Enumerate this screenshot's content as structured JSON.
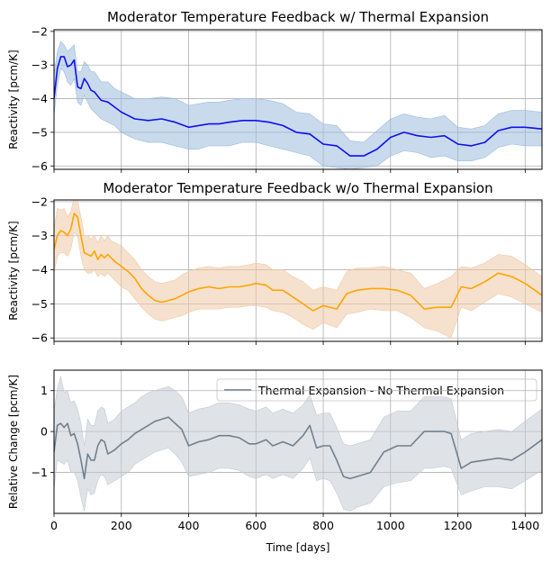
{
  "chart_data": [
    {
      "type": "line",
      "title": "Moderator Temperature Feedback w/ Thermal Expansion",
      "xlabel": "",
      "ylabel": "Reactivity [pcm/K]",
      "xlim": [
        0,
        1450
      ],
      "ylim": [
        -6.1,
        -1.95
      ],
      "yticks": [
        -2,
        -3,
        -4,
        -5,
        -6
      ],
      "ytick_labels": [
        "−2",
        "−3",
        "−4",
        "−5",
        "−6"
      ],
      "xticks": [
        0,
        200,
        400,
        600,
        800,
        1000,
        1200,
        1400
      ],
      "xtick_labels": [],
      "grid": true,
      "colors": {
        "line": "#1010f0",
        "band": "#9dbcdc"
      },
      "series": [
        {
          "x": [
            0,
            10,
            20,
            30,
            40,
            50,
            60,
            70,
            80,
            90,
            100,
            110,
            120,
            140,
            160,
            180,
            200,
            220,
            240,
            280,
            320,
            360,
            400,
            430,
            460,
            490,
            520,
            560,
            600,
            640,
            680,
            720,
            760,
            800,
            840,
            880,
            920,
            960,
            1000,
            1040,
            1080,
            1120,
            1160,
            1200,
            1240,
            1280,
            1320,
            1360,
            1400,
            1450
          ],
          "y": [
            -4.0,
            -3.1,
            -2.75,
            -2.75,
            -3.05,
            -3.0,
            -2.85,
            -3.65,
            -3.7,
            -3.4,
            -3.55,
            -3.75,
            -3.8,
            -4.05,
            -4.1,
            -4.25,
            -4.4,
            -4.5,
            -4.6,
            -4.65,
            -4.6,
            -4.7,
            -4.85,
            -4.8,
            -4.75,
            -4.75,
            -4.7,
            -4.65,
            -4.65,
            -4.7,
            -4.8,
            -5.0,
            -5.05,
            -5.35,
            -5.4,
            -5.7,
            -5.7,
            -5.5,
            -5.15,
            -5.0,
            -5.1,
            -5.15,
            -5.1,
            -5.35,
            -5.4,
            -5.3,
            -4.95,
            -4.85,
            -4.85,
            -4.9
          ],
          "lower": [
            -4.5,
            -3.6,
            -3.1,
            -3.2,
            -3.5,
            -3.6,
            -3.4,
            -4.1,
            -4.2,
            -3.9,
            -4.1,
            -4.3,
            -4.4,
            -4.6,
            -4.7,
            -4.8,
            -5.0,
            -5.1,
            -5.2,
            -5.3,
            -5.3,
            -5.4,
            -5.5,
            -5.5,
            -5.4,
            -5.4,
            -5.4,
            -5.3,
            -5.3,
            -5.4,
            -5.5,
            -5.6,
            -5.7,
            -6.0,
            -6.05,
            -6.1,
            -6.05,
            -6.0,
            -5.7,
            -5.55,
            -5.6,
            -5.75,
            -5.7,
            -5.85,
            -5.85,
            -5.75,
            -5.45,
            -5.35,
            -5.4,
            -5.4
          ],
          "upper": [
            -3.3,
            -2.6,
            -2.3,
            -2.4,
            -2.6,
            -2.5,
            -2.4,
            -3.2,
            -3.2,
            -2.9,
            -3.0,
            -3.2,
            -3.2,
            -3.5,
            -3.5,
            -3.7,
            -3.8,
            -3.9,
            -4.0,
            -4.0,
            -3.95,
            -4.0,
            -4.2,
            -4.15,
            -4.1,
            -4.1,
            -4.05,
            -4.0,
            -4.0,
            -4.05,
            -4.15,
            -4.4,
            -4.45,
            -4.75,
            -4.8,
            -5.25,
            -5.3,
            -4.95,
            -4.6,
            -4.45,
            -4.55,
            -4.6,
            -4.5,
            -4.85,
            -4.9,
            -4.8,
            -4.45,
            -4.35,
            -4.35,
            -4.4
          ]
        }
      ]
    },
    {
      "type": "line",
      "title": "Moderator Temperature Feedback w/o Thermal Expansion",
      "xlabel": "",
      "ylabel": "Reactivity [pcm/K]",
      "xlim": [
        0,
        1450
      ],
      "ylim": [
        -6.1,
        -1.95
      ],
      "yticks": [
        -2,
        -3,
        -4,
        -5,
        -6
      ],
      "ytick_labels": [
        "−2",
        "−3",
        "−4",
        "−5",
        "−6"
      ],
      "xticks": [
        0,
        200,
        400,
        600,
        800,
        1000,
        1200,
        1400
      ],
      "xtick_labels": [],
      "grid": true,
      "colors": {
        "line": "#ffa500",
        "band": "#efc9a6"
      },
      "series": [
        {
          "x": [
            0,
            10,
            20,
            30,
            40,
            50,
            60,
            70,
            80,
            90,
            100,
            110,
            120,
            130,
            140,
            150,
            160,
            170,
            180,
            200,
            220,
            240,
            260,
            280,
            300,
            320,
            340,
            360,
            380,
            400,
            430,
            460,
            490,
            520,
            550,
            580,
            600,
            630,
            650,
            680,
            710,
            740,
            770,
            800,
            840,
            870,
            900,
            940,
            980,
            1020,
            1060,
            1100,
            1140,
            1180,
            1210,
            1240,
            1280,
            1320,
            1360,
            1400,
            1450
          ],
          "y": [
            -3.4,
            -3.0,
            -2.85,
            -2.9,
            -3.0,
            -2.8,
            -2.35,
            -2.45,
            -3.0,
            -3.5,
            -3.55,
            -3.6,
            -3.45,
            -3.7,
            -3.55,
            -3.65,
            -3.55,
            -3.65,
            -3.75,
            -3.9,
            -4.05,
            -4.25,
            -4.55,
            -4.75,
            -4.9,
            -4.95,
            -4.9,
            -4.85,
            -4.75,
            -4.65,
            -4.55,
            -4.5,
            -4.55,
            -4.5,
            -4.5,
            -4.45,
            -4.4,
            -4.45,
            -4.6,
            -4.6,
            -4.8,
            -5.0,
            -5.2,
            -5.05,
            -5.15,
            -4.7,
            -4.6,
            -4.55,
            -4.55,
            -4.6,
            -4.75,
            -5.15,
            -5.1,
            -5.1,
            -4.5,
            -4.55,
            -4.35,
            -4.1,
            -4.2,
            -4.4,
            -4.75
          ],
          "lower": [
            -4.1,
            -3.6,
            -3.5,
            -3.5,
            -3.6,
            -3.4,
            -2.9,
            -3.0,
            -3.6,
            -4.0,
            -4.1,
            -4.1,
            -4.0,
            -4.2,
            -4.1,
            -4.2,
            -4.1,
            -4.2,
            -4.3,
            -4.5,
            -4.6,
            -4.85,
            -5.1,
            -5.3,
            -5.45,
            -5.5,
            -5.45,
            -5.4,
            -5.35,
            -5.25,
            -5.15,
            -5.15,
            -5.15,
            -5.1,
            -5.1,
            -5.05,
            -5.05,
            -5.1,
            -5.2,
            -5.25,
            -5.4,
            -5.6,
            -5.75,
            -5.55,
            -5.7,
            -5.3,
            -5.25,
            -5.15,
            -5.2,
            -5.2,
            -5.4,
            -5.7,
            -5.8,
            -6.0,
            -5.1,
            -5.2,
            -4.95,
            -4.7,
            -4.8,
            -5.0,
            -5.25
          ],
          "upper": [
            -2.8,
            -2.2,
            -2.25,
            -2.2,
            -2.45,
            -2.3,
            -1.85,
            -1.95,
            -2.45,
            -3.0,
            -3.0,
            -3.1,
            -3.0,
            -3.2,
            -3.0,
            -3.15,
            -3.0,
            -3.15,
            -3.2,
            -3.3,
            -3.5,
            -3.7,
            -4.0,
            -4.2,
            -4.35,
            -4.4,
            -4.35,
            -4.3,
            -4.15,
            -4.05,
            -3.95,
            -3.9,
            -3.95,
            -3.9,
            -3.9,
            -3.85,
            -3.8,
            -3.85,
            -4.0,
            -4.0,
            -4.2,
            -4.35,
            -4.6,
            -4.5,
            -4.6,
            -4.05,
            -3.95,
            -3.95,
            -3.9,
            -4.0,
            -4.1,
            -4.55,
            -4.4,
            -4.2,
            -3.9,
            -3.95,
            -3.8,
            -3.55,
            -3.6,
            -3.85,
            -4.2
          ]
        }
      ]
    },
    {
      "type": "line",
      "title": "",
      "xlabel": "Time [days]",
      "ylabel": "Relative Change [pcm/K]",
      "xlim": [
        0,
        1450
      ],
      "ylim": [
        -2.0,
        1.5
      ],
      "yticks": [
        1,
        0,
        -1
      ],
      "ytick_labels": [
        "1",
        "0",
        "−1"
      ],
      "xticks": [
        0,
        200,
        400,
        600,
        800,
        1000,
        1200,
        1400
      ],
      "xtick_labels": [
        "0",
        "200",
        "400",
        "600",
        "800",
        "1000",
        "1200",
        "1400"
      ],
      "grid": true,
      "legend": "top-right",
      "colors": {
        "line": "#708090",
        "band": "#c5cad1"
      },
      "series": [
        {
          "name": "Thermal Expansion - No Thermal Expansion",
          "x": [
            0,
            10,
            20,
            30,
            40,
            50,
            60,
            70,
            80,
            90,
            100,
            110,
            120,
            130,
            140,
            150,
            160,
            180,
            200,
            220,
            240,
            260,
            280,
            300,
            320,
            340,
            360,
            380,
            400,
            430,
            460,
            490,
            520,
            550,
            580,
            600,
            630,
            650,
            680,
            710,
            740,
            760,
            780,
            800,
            820,
            840,
            860,
            880,
            900,
            940,
            980,
            1020,
            1060,
            1100,
            1120,
            1160,
            1180,
            1210,
            1240,
            1280,
            1320,
            1360,
            1400,
            1450
          ],
          "y": [
            -0.5,
            0.15,
            0.2,
            0.1,
            0.2,
            -0.1,
            -0.05,
            -0.3,
            -0.7,
            -1.15,
            -0.55,
            -0.7,
            -0.7,
            -0.35,
            -0.2,
            -0.25,
            -0.55,
            -0.45,
            -0.3,
            -0.2,
            -0.05,
            0.05,
            0.15,
            0.25,
            0.3,
            0.35,
            0.2,
            0.05,
            -0.35,
            -0.25,
            -0.2,
            -0.1,
            -0.1,
            -0.15,
            -0.3,
            -0.3,
            -0.2,
            -0.35,
            -0.25,
            -0.35,
            -0.1,
            0.15,
            -0.4,
            -0.35,
            -0.35,
            -0.7,
            -1.1,
            -1.15,
            -1.1,
            -1.0,
            -0.5,
            -0.35,
            -0.35,
            0.0,
            0.0,
            0.0,
            -0.05,
            -0.9,
            -0.75,
            -0.7,
            -0.65,
            -0.7,
            -0.5,
            -0.2
          ],
          "lower": [
            -1.4,
            -0.7,
            -0.75,
            -0.8,
            -0.7,
            -1.0,
            -1.0,
            -1.2,
            -1.6,
            -1.95,
            -1.4,
            -1.55,
            -1.5,
            -1.2,
            -1.05,
            -1.1,
            -1.3,
            -1.2,
            -1.1,
            -1.0,
            -0.8,
            -0.7,
            -0.6,
            -0.5,
            -0.45,
            -0.4,
            -0.55,
            -0.75,
            -1.1,
            -1.05,
            -1.0,
            -0.9,
            -0.9,
            -0.95,
            -1.1,
            -1.15,
            -1.05,
            -1.15,
            -1.05,
            -1.15,
            -0.9,
            -0.65,
            -1.2,
            -1.15,
            -1.2,
            -1.5,
            -1.9,
            -1.95,
            -1.85,
            -1.75,
            -1.35,
            -1.25,
            -1.2,
            -0.9,
            -0.9,
            -0.85,
            -0.9,
            -1.55,
            -1.45,
            -1.35,
            -1.35,
            -1.4,
            -1.2,
            -0.95
          ],
          "upper": [
            0.5,
            1.05,
            1.35,
            0.95,
            1.0,
            0.7,
            0.75,
            0.55,
            0.2,
            -0.35,
            0.3,
            0.15,
            0.15,
            0.5,
            0.6,
            0.55,
            0.2,
            0.3,
            0.5,
            0.6,
            0.7,
            0.85,
            0.95,
            1.0,
            1.05,
            1.1,
            1.0,
            0.85,
            0.45,
            0.55,
            0.6,
            0.7,
            0.7,
            0.65,
            0.55,
            0.5,
            0.6,
            0.45,
            0.55,
            0.45,
            0.65,
            0.9,
            0.4,
            0.45,
            0.45,
            0.1,
            -0.3,
            -0.35,
            -0.3,
            -0.2,
            0.35,
            0.5,
            0.5,
            0.85,
            0.85,
            0.85,
            0.8,
            -0.2,
            -0.05,
            0.0,
            0.05,
            0.0,
            0.25,
            0.55
          ]
        }
      ]
    }
  ]
}
